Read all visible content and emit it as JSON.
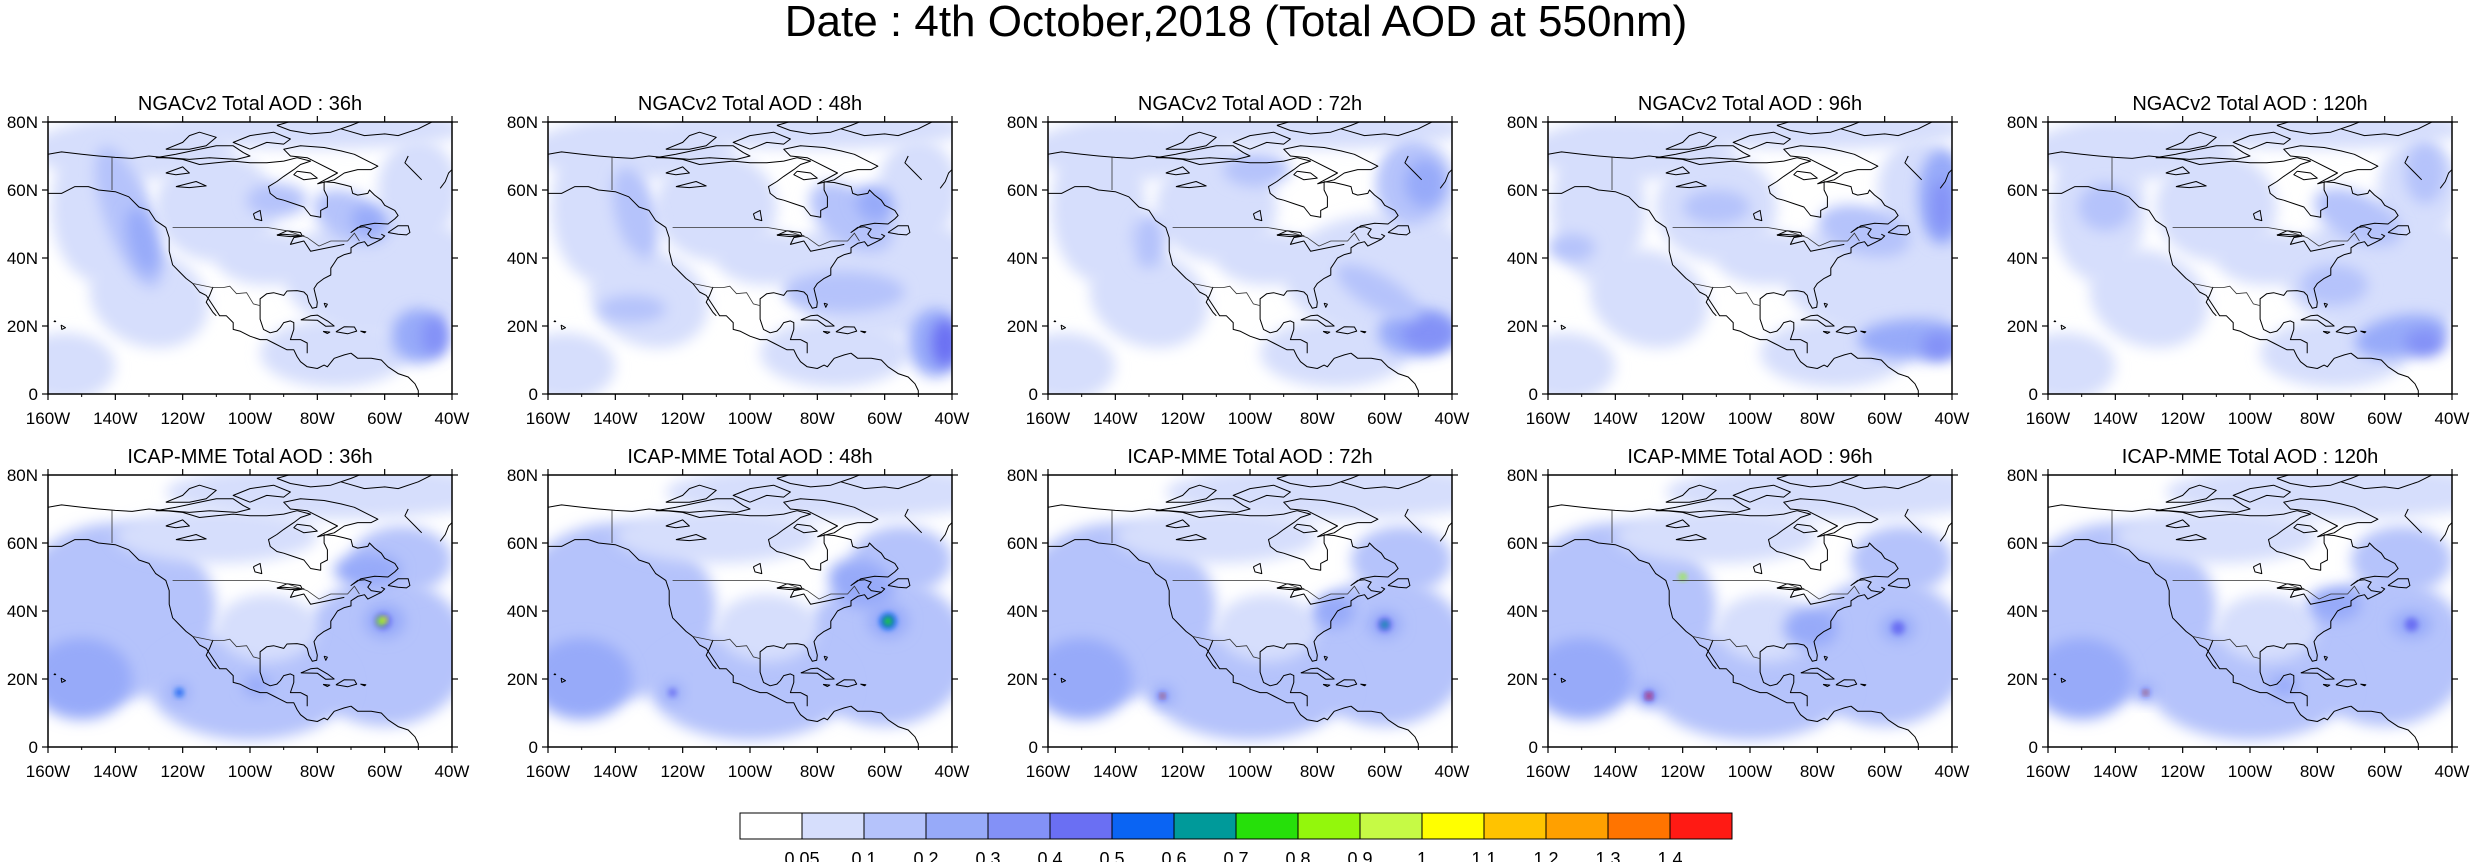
{
  "title": "Date : 4th October,2018 (Total AOD at 550nm)",
  "map_axes": {
    "x_ticks": [
      "160W",
      "140W",
      "120W",
      "100W",
      "80W",
      "60W",
      "40W"
    ],
    "y_ticks": [
      "0",
      "20N",
      "40N",
      "60N",
      "80N"
    ],
    "lon_range": [
      -160,
      -40
    ],
    "lat_range": [
      0,
      80
    ]
  },
  "panels": [
    {
      "title": "NGACv2 Total AOD : 36h",
      "row": 0,
      "col": 0
    },
    {
      "title": "NGACv2 Total AOD : 48h",
      "row": 0,
      "col": 1
    },
    {
      "title": "NGACv2 Total AOD : 72h",
      "row": 0,
      "col": 2
    },
    {
      "title": "NGACv2 Total AOD : 96h",
      "row": 0,
      "col": 3
    },
    {
      "title": "NGACv2 Total AOD : 120h",
      "row": 0,
      "col": 4
    },
    {
      "title": "ICAP-MME Total AOD : 36h",
      "row": 1,
      "col": 0
    },
    {
      "title": "ICAP-MME Total AOD : 48h",
      "row": 1,
      "col": 1
    },
    {
      "title": "ICAP-MME Total AOD : 72h",
      "row": 1,
      "col": 2
    },
    {
      "title": "ICAP-MME Total AOD : 96h",
      "row": 1,
      "col": 3
    },
    {
      "title": "ICAP-MME Total AOD : 120h",
      "row": 1,
      "col": 4
    }
  ],
  "colorbar": {
    "labels": [
      "0.05",
      "0.1",
      "0.2",
      "0.3",
      "0.4",
      "0.5",
      "0.6",
      "0.7",
      "0.8",
      "0.9",
      "1",
      "1.1",
      "1.2",
      "1.3",
      "1.4"
    ],
    "colors": [
      "#ffffff",
      "#d6defc",
      "#b5c3fb",
      "#97aaf9",
      "#8391f7",
      "#6a6ff3",
      "#0a64f3",
      "#009a9a",
      "#26e00a",
      "#93f70c",
      "#c6fa45",
      "#ffff00",
      "#ffc300",
      "#ffa000",
      "#ff7400",
      "#ff1a14"
    ]
  }
}
